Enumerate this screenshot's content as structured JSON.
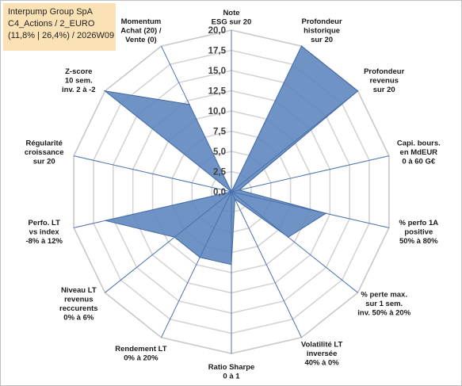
{
  "title_box": {
    "line1": "Interpump Group SpA",
    "line2": "C4_Actions / 2_EURO",
    "line3": "(11,8% | 26,4%) / 2026W09"
  },
  "chart_data": {
    "type": "radar",
    "r_range": [
      0,
      20
    ],
    "r_ticks": [
      "0,0",
      "2,5",
      "5,0",
      "7,5",
      "10,0",
      "12,5",
      "15,0",
      "17,5",
      "20,0"
    ],
    "axes": [
      [
        "Note",
        "ESG sur 20"
      ],
      [
        "Profondeur",
        "historique",
        "sur 20"
      ],
      [
        "Profondeur",
        "revenus",
        "sur 20"
      ],
      [
        "Capi. bours.",
        "en MdEUR",
        "0 à 60 G€"
      ],
      [
        "% perfo 1A",
        "positive",
        "50% à 80%"
      ],
      [
        "% perte max.",
        "sur 1 sem.",
        "inv. 50% à 20%"
      ],
      [
        "Volatilité LT",
        "inversée",
        "40% à 0%"
      ],
      [
        "Ratio Sharpe",
        "0 à 1"
      ],
      [
        "Rendement LT",
        "0% à 20%"
      ],
      [
        "Niveau LT",
        "revenus",
        "reccurents",
        "0% à 6%"
      ],
      [
        "Perfo. LT",
        "vs index",
        "-8% à 12%"
      ],
      [
        "Régularité",
        "croissance",
        "sur 20"
      ],
      [
        "Z-score",
        "10 sem.",
        "inv. 2 à -2"
      ],
      [
        "Momentum",
        "Achat (20) /",
        "Vente (0)"
      ]
    ],
    "values": [
      0,
      20,
      20,
      1,
      12,
      9,
      1,
      9,
      9,
      9,
      16,
      0,
      20,
      12
    ],
    "grid": true,
    "series_color": "#5b84bd",
    "series_stroke": "#41679e"
  }
}
